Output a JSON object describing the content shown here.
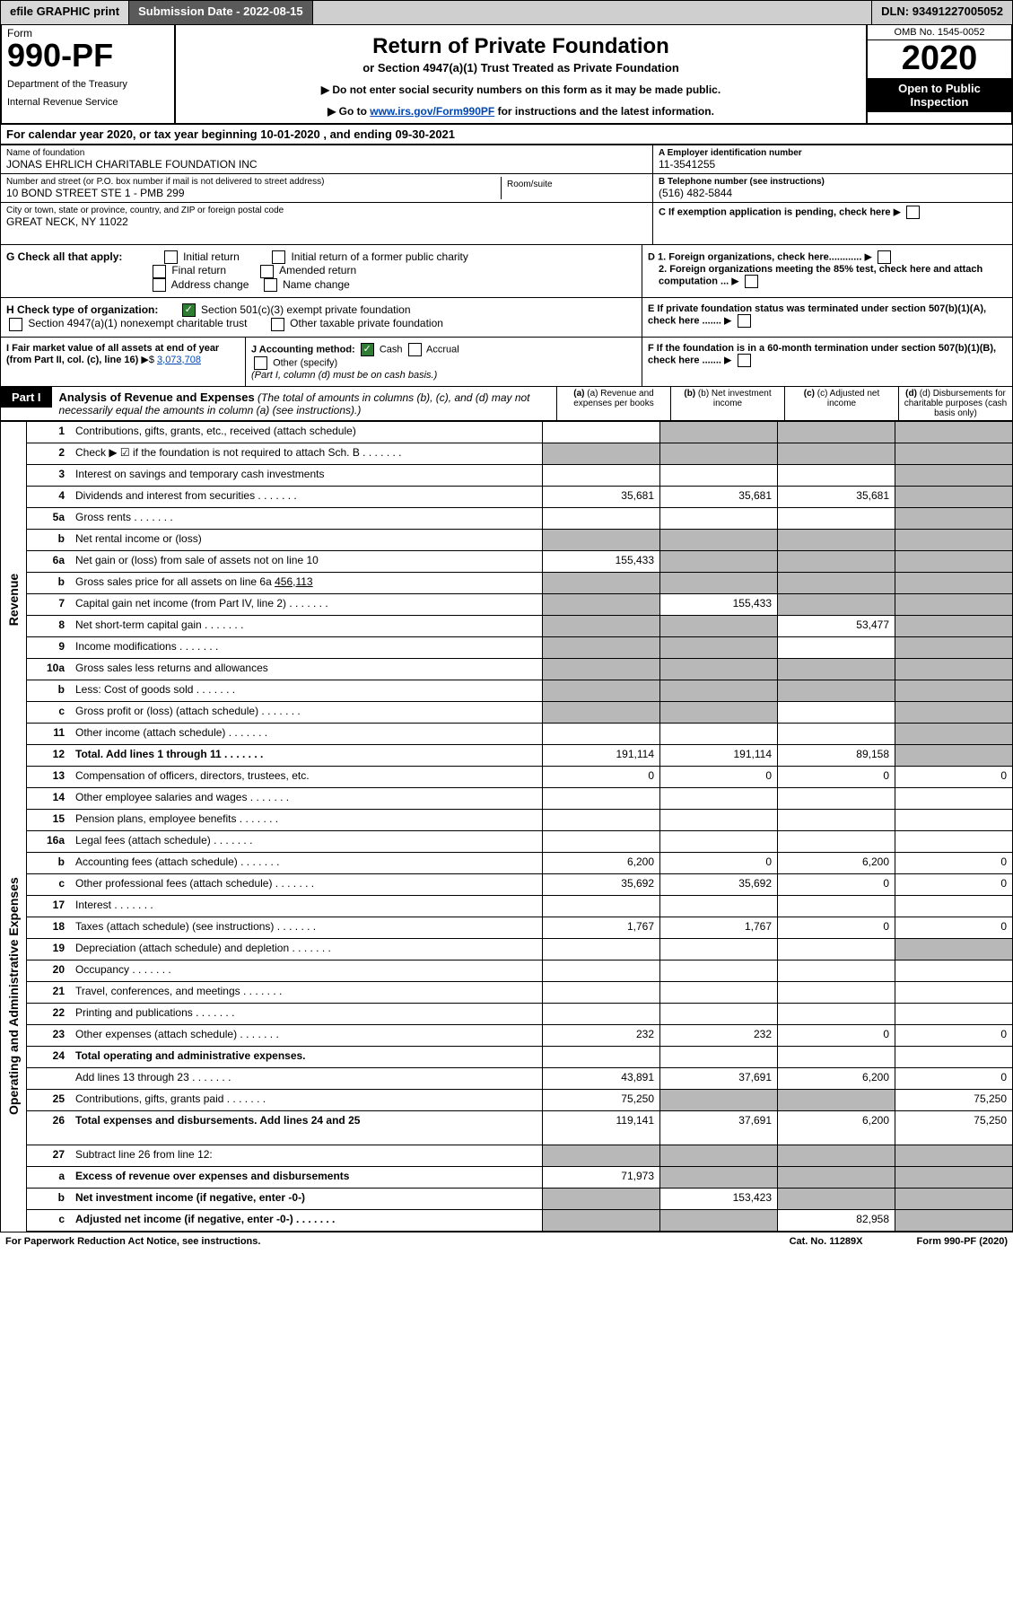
{
  "topbar": {
    "efile": "efile GRAPHIC print",
    "subLabel": "Submission Date - ",
    "subDate": "2022-08-15",
    "dlnLabel": "DLN: ",
    "dln": "93491227005052"
  },
  "header": {
    "formWord": "Form",
    "formNum": "990-PF",
    "dept": "Department of the Treasury",
    "irs": "Internal Revenue Service",
    "title": "Return of Private Foundation",
    "subtitle": "or Section 4947(a)(1) Trust Treated as Private Foundation",
    "note1": "▶ Do not enter social security numbers on this form as it may be made public.",
    "note2": "▶ Go to ",
    "note2link": "www.irs.gov/Form990PF",
    "note2b": " for instructions and the latest information.",
    "omb": "OMB No. 1545-0052",
    "year": "2020",
    "open": "Open to Public Inspection"
  },
  "calYear": {
    "text": "For calendar year 2020, or tax year beginning ",
    "begin": "10-01-2020",
    "mid": " , and ending ",
    "end": "09-30-2021"
  },
  "foundation": {
    "nameLabel": "Name of foundation",
    "name": "JONAS EHRLICH CHARITABLE FOUNDATION INC",
    "streetLabel": "Number and street (or P.O. box number if mail is not delivered to street address)",
    "street": "10 BOND STREET STE 1 - PMB 299",
    "roomLabel": "Room/suite",
    "cityLabel": "City or town, state or province, country, and ZIP or foreign postal code",
    "city": "GREAT NECK, NY  11022",
    "einLabel": "A Employer identification number",
    "ein": "11-3541255",
    "telLabel": "B Telephone number (see instructions)",
    "tel": "(516) 482-5844",
    "cLabel": "C If exemption application is pending, check here"
  },
  "sectionG": {
    "label": "G Check all that apply:",
    "opts": [
      "Initial return",
      "Initial return of a former public charity",
      "Final return",
      "Amended return",
      "Address change",
      "Name change"
    ]
  },
  "sectionD": {
    "d1": "D 1. Foreign organizations, check here............",
    "d2": "2. Foreign organizations meeting the 85% test, check here and attach computation ..."
  },
  "sectionH": {
    "label": "H Check type of organization:",
    "opt1": "Section 501(c)(3) exempt private foundation",
    "opt2": "Section 4947(a)(1) nonexempt charitable trust",
    "opt3": "Other taxable private foundation"
  },
  "sectionE": "E  If private foundation status was terminated under section 507(b)(1)(A), check here .......",
  "sectionI": {
    "label": "I Fair market value of all assets at end of year (from Part II, col. (c), line 16)",
    "val": "3,073,708"
  },
  "sectionJ": {
    "label": "J Accounting method:",
    "cash": "Cash",
    "accrual": "Accrual",
    "other": "Other (specify)",
    "note": "(Part I, column (d) must be on cash basis.)"
  },
  "sectionF": "F  If the foundation is in a 60-month termination under section 507(b)(1)(B), check here .......",
  "part1": {
    "tab": "Part I",
    "title": "Analysis of Revenue and Expenses",
    "titleNote": " (The total of amounts in columns (b), (c), and (d) may not necessarily equal the amounts in column (a) (see instructions).)",
    "cols": [
      "(a)  Revenue and expenses per books",
      "(b)  Net investment income",
      "(c)  Adjusted net income",
      "(d)  Disbursements for charitable purposes (cash basis only)"
    ]
  },
  "sideLabels": {
    "revenue": "Revenue",
    "expenses": "Operating and Administrative Expenses"
  },
  "lines": [
    {
      "n": "1",
      "d": "Contributions, gifts, grants, etc., received (attach schedule)",
      "a": "",
      "b": "g",
      "c": "g",
      "dd": "g"
    },
    {
      "n": "2",
      "d": "Check ▶ ☑ if the foundation is not required to attach Sch. B",
      "dots": true,
      "a": "g",
      "b": "g",
      "c": "g",
      "dd": "g",
      "bold": [
        "not"
      ]
    },
    {
      "n": "3",
      "d": "Interest on savings and temporary cash investments",
      "a": "",
      "b": "",
      "c": "",
      "dd": "g"
    },
    {
      "n": "4",
      "d": "Dividends and interest from securities",
      "dots": true,
      "a": "35,681",
      "b": "35,681",
      "c": "35,681",
      "dd": "g"
    },
    {
      "n": "5a",
      "d": "Gross rents",
      "dots": true,
      "a": "",
      "b": "",
      "c": "",
      "dd": "g"
    },
    {
      "n": "b",
      "d": "Net rental income or (loss)",
      "inline": true,
      "a": "g",
      "b": "g",
      "c": "g",
      "dd": "g"
    },
    {
      "n": "6a",
      "d": "Net gain or (loss) from sale of assets not on line 10",
      "a": "155,433",
      "b": "g",
      "c": "g",
      "dd": "g"
    },
    {
      "n": "b",
      "d": "Gross sales price for all assets on line 6a",
      "inline": true,
      "inlineVal": "456,113",
      "a": "g",
      "b": "g",
      "c": "g",
      "dd": "g"
    },
    {
      "n": "7",
      "d": "Capital gain net income (from Part IV, line 2)",
      "dots": true,
      "a": "g",
      "b": "155,433",
      "c": "g",
      "dd": "g"
    },
    {
      "n": "8",
      "d": "Net short-term capital gain",
      "dots": true,
      "a": "g",
      "b": "g",
      "c": "53,477",
      "dd": "g"
    },
    {
      "n": "9",
      "d": "Income modifications",
      "dots": true,
      "a": "g",
      "b": "g",
      "c": "",
      "dd": "g"
    },
    {
      "n": "10a",
      "d": "Gross sales less returns and allowances",
      "inline": true,
      "a": "g",
      "b": "g",
      "c": "g",
      "dd": "g"
    },
    {
      "n": "b",
      "d": "Less: Cost of goods sold",
      "dots": true,
      "inline": true,
      "a": "g",
      "b": "g",
      "c": "g",
      "dd": "g"
    },
    {
      "n": "c",
      "d": "Gross profit or (loss) (attach schedule)",
      "dots": true,
      "a": "g",
      "b": "g",
      "c": "",
      "dd": "g"
    },
    {
      "n": "11",
      "d": "Other income (attach schedule)",
      "dots": true,
      "a": "",
      "b": "",
      "c": "",
      "dd": "g"
    },
    {
      "n": "12",
      "d": "Total. Add lines 1 through 11",
      "dots": true,
      "bold": true,
      "a": "191,114",
      "b": "191,114",
      "c": "89,158",
      "dd": "g"
    },
    {
      "n": "13",
      "d": "Compensation of officers, directors, trustees, etc.",
      "a": "0",
      "b": "0",
      "c": "0",
      "dd": "0",
      "sec": "exp"
    },
    {
      "n": "14",
      "d": "Other employee salaries and wages",
      "dots": true,
      "a": "",
      "b": "",
      "c": "",
      "dd": ""
    },
    {
      "n": "15",
      "d": "Pension plans, employee benefits",
      "dots": true,
      "a": "",
      "b": "",
      "c": "",
      "dd": ""
    },
    {
      "n": "16a",
      "d": "Legal fees (attach schedule)",
      "dots": true,
      "a": "",
      "b": "",
      "c": "",
      "dd": ""
    },
    {
      "n": "b",
      "d": "Accounting fees (attach schedule)",
      "dots": true,
      "a": "6,200",
      "b": "0",
      "c": "6,200",
      "dd": "0"
    },
    {
      "n": "c",
      "d": "Other professional fees (attach schedule)",
      "dots": true,
      "a": "35,692",
      "b": "35,692",
      "c": "0",
      "dd": "0"
    },
    {
      "n": "17",
      "d": "Interest",
      "dots": true,
      "a": "",
      "b": "",
      "c": "",
      "dd": ""
    },
    {
      "n": "18",
      "d": "Taxes (attach schedule) (see instructions)",
      "dots": true,
      "a": "1,767",
      "b": "1,767",
      "c": "0",
      "dd": "0"
    },
    {
      "n": "19",
      "d": "Depreciation (attach schedule) and depletion",
      "dots": true,
      "a": "",
      "b": "",
      "c": "",
      "dd": "g"
    },
    {
      "n": "20",
      "d": "Occupancy",
      "dots": true,
      "a": "",
      "b": "",
      "c": "",
      "dd": ""
    },
    {
      "n": "21",
      "d": "Travel, conferences, and meetings",
      "dots": true,
      "a": "",
      "b": "",
      "c": "",
      "dd": ""
    },
    {
      "n": "22",
      "d": "Printing and publications",
      "dots": true,
      "a": "",
      "b": "",
      "c": "",
      "dd": ""
    },
    {
      "n": "23",
      "d": "Other expenses (attach schedule)",
      "dots": true,
      "a": "232",
      "b": "232",
      "c": "0",
      "dd": "0"
    },
    {
      "n": "24",
      "d": "Total operating and administrative expenses.",
      "bold": true,
      "a": "",
      "b": "",
      "c": "",
      "dd": "",
      "noborder": true
    },
    {
      "n": "",
      "d": "Add lines 13 through 23",
      "dots": true,
      "a": "43,891",
      "b": "37,691",
      "c": "6,200",
      "dd": "0"
    },
    {
      "n": "25",
      "d": "Contributions, gifts, grants paid",
      "dots": true,
      "a": "75,250",
      "b": "g",
      "c": "g",
      "dd": "75,250"
    },
    {
      "n": "26",
      "d": "Total expenses and disbursements. Add lines 24 and 25",
      "bold": true,
      "a": "119,141",
      "b": "37,691",
      "c": "6,200",
      "dd": "75,250",
      "tall": true
    },
    {
      "n": "27",
      "d": "Subtract line 26 from line 12:",
      "a": "g",
      "b": "g",
      "c": "g",
      "dd": "g"
    },
    {
      "n": "a",
      "d": "Excess of revenue over expenses and disbursements",
      "bold": true,
      "a": "71,973",
      "b": "g",
      "c": "g",
      "dd": "g"
    },
    {
      "n": "b",
      "d": "Net investment income (if negative, enter -0-)",
      "bold": true,
      "a": "g",
      "b": "153,423",
      "c": "g",
      "dd": "g"
    },
    {
      "n": "c",
      "d": "Adjusted net income (if negative, enter -0-)",
      "bold": true,
      "dots": true,
      "a": "g",
      "b": "g",
      "c": "82,958",
      "dd": "g"
    }
  ],
  "footer": {
    "left": "For Paperwork Reduction Act Notice, see instructions.",
    "cat": "Cat. No. 11289X",
    "form": "Form 990-PF (2020)"
  }
}
